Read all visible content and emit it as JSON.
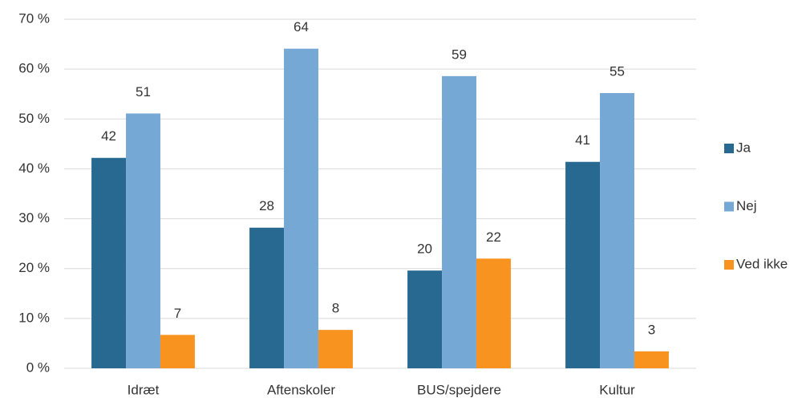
{
  "chart_data": {
    "type": "bar",
    "categories": [
      "Idræt",
      "Aftenskoler",
      "BUS/spejdere",
      "Kultur"
    ],
    "series": [
      {
        "name": "Ja",
        "color": "#276991",
        "values": [
          42.2,
          28.2,
          19.6,
          41.4
        ],
        "value_labels": [
          "42",
          "28",
          "20",
          "41"
        ]
      },
      {
        "name": "Nej",
        "color": "#76a8d6",
        "values": [
          51.1,
          64.1,
          58.6,
          55.2
        ],
        "value_labels": [
          "51",
          "64",
          "59",
          "55"
        ]
      },
      {
        "name": "Ved ikke",
        "color": "#f7931e",
        "values": [
          6.7,
          7.7,
          22.0,
          3.4
        ],
        "value_labels": [
          "7",
          "8",
          "22",
          "3"
        ]
      }
    ],
    "ylim": [
      0,
      70
    ],
    "yticks": [
      {
        "value": 0,
        "label": "0 %"
      },
      {
        "value": 10,
        "label": "10 %"
      },
      {
        "value": 20,
        "label": "20 %"
      },
      {
        "value": 30,
        "label": "30 %"
      },
      {
        "value": 40,
        "label": "40 %"
      },
      {
        "value": 50,
        "label": "50 %"
      },
      {
        "value": 60,
        "label": "60 %"
      },
      {
        "value": 70,
        "label": "70 %"
      }
    ],
    "grid": true,
    "legend": "right"
  }
}
